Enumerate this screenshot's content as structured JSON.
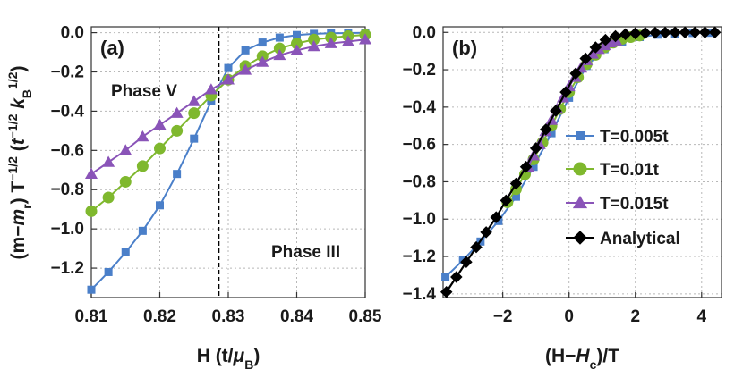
{
  "chart_data": [
    {
      "panel": "(a)",
      "type": "line",
      "xlabel": "H (t/μB)",
      "xlabel_parts": [
        "H (t/",
        "μ",
        "B",
        ")"
      ],
      "ylabel": "(m−mr) T^−1/2 (t^−1/2 kB^1/2)",
      "xlim": [
        0.81,
        0.85
      ],
      "ylim": [
        -1.35,
        0.03
      ],
      "xticks": [
        "0.81",
        "0.82",
        "0.83",
        "0.84",
        "0.85"
      ],
      "yticks": [
        "0.0",
        "−0.2",
        "−0.4",
        "−0.6",
        "−0.8",
        "−1.0",
        "−1.2"
      ],
      "grid": true,
      "annotations": [
        "Phase V",
        "Phase III"
      ],
      "critical_line_x": 0.8286,
      "series": [
        {
          "marker": "square",
          "color": "#4a7fc9",
          "x": [
            0.81,
            0.8125,
            0.815,
            0.8175,
            0.82,
            0.8225,
            0.825,
            0.8275,
            0.83,
            0.8325,
            0.835,
            0.8375,
            0.84,
            0.8425,
            0.845,
            0.8475,
            0.85
          ],
          "values": [
            -1.31,
            -1.22,
            -1.12,
            -1.01,
            -0.88,
            -0.72,
            -0.54,
            -0.35,
            -0.18,
            -0.09,
            -0.05,
            -0.025,
            -0.012,
            -0.006,
            -0.003,
            -0.002,
            -0.001
          ]
        },
        {
          "marker": "circle",
          "color": "#7fb82e",
          "x": [
            0.81,
            0.8125,
            0.815,
            0.8175,
            0.82,
            0.8225,
            0.825,
            0.8275,
            0.83,
            0.8325,
            0.835,
            0.8375,
            0.84,
            0.8425,
            0.845,
            0.8475,
            0.85
          ],
          "values": [
            -0.91,
            -0.84,
            -0.76,
            -0.68,
            -0.59,
            -0.5,
            -0.41,
            -0.32,
            -0.24,
            -0.17,
            -0.12,
            -0.08,
            -0.055,
            -0.035,
            -0.025,
            -0.017,
            -0.011
          ]
        },
        {
          "marker": "triangle",
          "color": "#8a54b8",
          "x": [
            0.81,
            0.8125,
            0.815,
            0.8175,
            0.82,
            0.8225,
            0.825,
            0.8275,
            0.83,
            0.8325,
            0.835,
            0.8375,
            0.84,
            0.8425,
            0.845,
            0.8475,
            0.85
          ],
          "values": [
            -0.72,
            -0.66,
            -0.6,
            -0.53,
            -0.47,
            -0.41,
            -0.35,
            -0.29,
            -0.24,
            -0.19,
            -0.15,
            -0.115,
            -0.09,
            -0.07,
            -0.055,
            -0.045,
            -0.035
          ]
        }
      ]
    },
    {
      "panel": "(b)",
      "type": "line",
      "xlabel": "(H−Hc)/T",
      "xlabel_parts": [
        "(H−",
        "H",
        "c",
        ")/T"
      ],
      "xlim": [
        -3.8,
        4.6
      ],
      "ylim": [
        -1.42,
        0.03
      ],
      "xticks": [
        "−2",
        "0",
        "2",
        "4"
      ],
      "yticks": [
        "0.0",
        "−0.2",
        "−0.4",
        "−0.6",
        "−0.8",
        "−1.0",
        "−1.2",
        "−1.4"
      ],
      "grid": true,
      "legend_position": "center-right",
      "series": [
        {
          "name": "T=0.005t",
          "marker": "square",
          "color": "#4a7fc9",
          "x": [
            -3.73,
            -3.2,
            -2.67,
            -2.13,
            -1.6,
            -1.07,
            -0.53,
            0.0,
            0.53,
            1.07,
            1.6,
            2.13,
            2.67,
            3.2,
            3.73,
            4.27
          ],
          "values": [
            -1.31,
            -1.22,
            -1.12,
            -1.01,
            -0.88,
            -0.72,
            -0.54,
            -0.35,
            -0.18,
            -0.09,
            -0.05,
            -0.025,
            -0.012,
            -0.006,
            -0.003,
            -0.002
          ]
        },
        {
          "name": "T=0.01t",
          "marker": "circle",
          "color": "#7fb82e",
          "x": [
            -1.86,
            -1.6,
            -1.33,
            -1.07,
            -0.8,
            -0.53,
            -0.27,
            0.0,
            0.27,
            0.53,
            0.8,
            1.07,
            1.33,
            1.6,
            1.86,
            2.13
          ],
          "values": [
            -0.91,
            -0.84,
            -0.76,
            -0.68,
            -0.59,
            -0.5,
            -0.41,
            -0.32,
            -0.24,
            -0.17,
            -0.12,
            -0.08,
            -0.055,
            -0.035,
            -0.025,
            -0.017
          ]
        },
        {
          "name": "T=0.015t",
          "marker": "triangle",
          "color": "#8a54b8",
          "x": [
            -1.24,
            -1.07,
            -0.89,
            -0.71,
            -0.53,
            -0.36,
            -0.18,
            0.0,
            0.18,
            0.36,
            0.53,
            0.71,
            0.89,
            1.07,
            1.24,
            1.42
          ],
          "values": [
            -0.72,
            -0.66,
            -0.6,
            -0.53,
            -0.47,
            -0.41,
            -0.35,
            -0.29,
            -0.24,
            -0.19,
            -0.15,
            -0.115,
            -0.09,
            -0.07,
            -0.055,
            -0.045
          ]
        },
        {
          "name": "Analytical",
          "marker": "diamond",
          "color": "#000000",
          "x": [
            -3.7,
            -3.4,
            -3.1,
            -2.8,
            -2.5,
            -2.2,
            -1.9,
            -1.6,
            -1.3,
            -1.0,
            -0.7,
            -0.4,
            -0.1,
            0.2,
            0.5,
            0.8,
            1.1,
            1.4,
            1.7,
            2.0,
            2.3,
            2.6,
            2.9,
            3.2,
            3.5,
            3.8,
            4.1,
            4.4
          ],
          "values": [
            -1.39,
            -1.31,
            -1.23,
            -1.15,
            -1.07,
            -0.99,
            -0.9,
            -0.81,
            -0.72,
            -0.62,
            -0.52,
            -0.42,
            -0.32,
            -0.22,
            -0.14,
            -0.08,
            -0.04,
            -0.02,
            -0.01,
            -0.005,
            -0.003,
            -0.002,
            -0.001,
            0.0,
            0.0,
            0.0,
            0.0,
            0.0
          ]
        }
      ]
    }
  ]
}
